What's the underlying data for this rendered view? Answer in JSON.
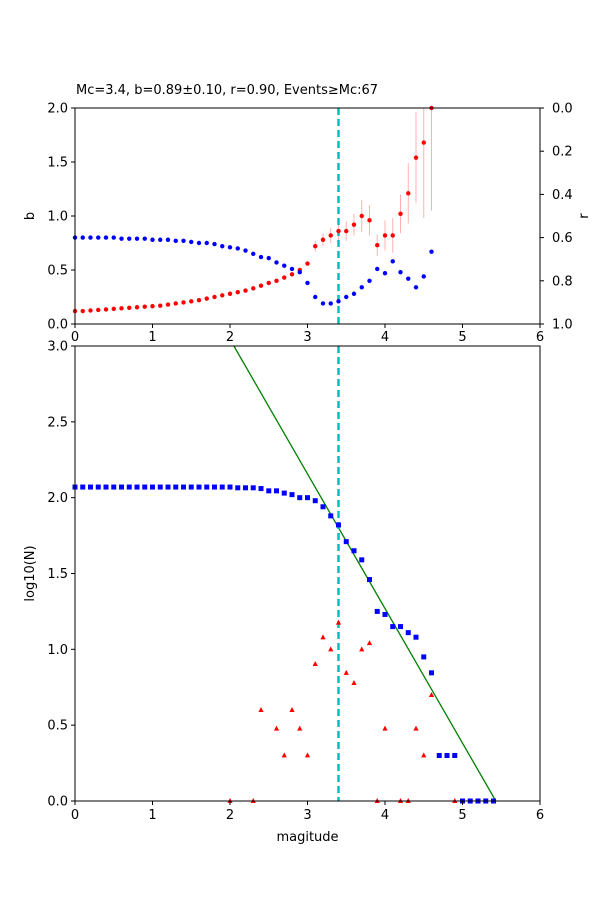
{
  "chart_data": [
    {
      "type": "scatter",
      "title": "Mc=3.4, b=0.89±0.10, r=0.90, Events≥Mc:67",
      "xlabel": "",
      "ylabel": "b",
      "ylabel_right": "r",
      "xlim": [
        0,
        6
      ],
      "ylim": [
        0,
        2
      ],
      "ylim_right": [
        1,
        0
      ],
      "x_ticks": [
        "0",
        "1",
        "2",
        "3",
        "4",
        "5",
        "6"
      ],
      "y_ticks": [
        "0.0",
        "0.5",
        "1.0",
        "1.5",
        "2.0"
      ],
      "y_ticks_right": [
        "0.0",
        "0.2",
        "0.4",
        "0.6",
        "0.8",
        "1.0"
      ],
      "grid": false,
      "mc_line": 3.4,
      "mc_line_color": "#00bfbf",
      "series": [
        {
          "color": "#ff0000",
          "axis": "left",
          "x": [
            0.0,
            0.1,
            0.2,
            0.3,
            0.4,
            0.5,
            0.6,
            0.7,
            0.8,
            0.9,
            1.0,
            1.1,
            1.2,
            1.3,
            1.4,
            1.5,
            1.6,
            1.7,
            1.8,
            1.9,
            2.0,
            2.1,
            2.2,
            2.3,
            2.4,
            2.5,
            2.6,
            2.7,
            2.8,
            2.9,
            3.0,
            3.1,
            3.2,
            3.3,
            3.4,
            3.5,
            3.6,
            3.7,
            3.8,
            3.9,
            4.0,
            4.1,
            4.2,
            4.3,
            4.4,
            4.5,
            4.6
          ],
          "values": [
            0.12,
            0.12,
            0.125,
            0.13,
            0.135,
            0.14,
            0.145,
            0.15,
            0.155,
            0.16,
            0.165,
            0.17,
            0.18,
            0.19,
            0.2,
            0.21,
            0.22,
            0.235,
            0.25,
            0.265,
            0.28,
            0.295,
            0.31,
            0.33,
            0.355,
            0.38,
            0.4,
            0.43,
            0.46,
            0.5,
            0.56,
            0.72,
            0.78,
            0.82,
            0.86,
            0.86,
            0.92,
            1.0,
            0.96,
            0.73,
            0.82,
            0.82,
            1.02,
            1.21,
            1.54,
            1.68,
            2.0
          ],
          "errors": [
            0,
            0,
            0,
            0,
            0,
            0,
            0,
            0,
            0,
            0,
            0,
            0,
            0,
            0,
            0,
            0,
            0,
            0,
            0,
            0,
            0,
            0,
            0,
            0,
            0,
            0,
            0,
            0,
            0,
            0,
            0.02,
            0.05,
            0.06,
            0.07,
            0.08,
            0.09,
            0.1,
            0.15,
            0.14,
            0.1,
            0.14,
            0.16,
            0.18,
            0.28,
            0.42,
            0.7,
            0.95
          ]
        },
        {
          "color": "#0000ff",
          "axis": "right",
          "x": [
            0.0,
            0.1,
            0.2,
            0.3,
            0.4,
            0.5,
            0.6,
            0.7,
            0.8,
            0.9,
            1.0,
            1.1,
            1.2,
            1.3,
            1.4,
            1.5,
            1.6,
            1.7,
            1.8,
            1.9,
            2.0,
            2.1,
            2.2,
            2.3,
            2.4,
            2.5,
            2.6,
            2.7,
            2.8,
            2.9,
            3.0,
            3.1,
            3.2,
            3.3,
            3.4,
            3.5,
            3.6,
            3.7,
            3.8,
            3.9,
            4.0,
            4.1,
            4.2,
            4.3,
            4.4,
            4.5,
            4.6
          ],
          "values": [
            0.6,
            0.6,
            0.6,
            0.6,
            0.6,
            0.6,
            0.605,
            0.605,
            0.605,
            0.605,
            0.61,
            0.61,
            0.61,
            0.615,
            0.615,
            0.62,
            0.625,
            0.625,
            0.63,
            0.64,
            0.645,
            0.65,
            0.66,
            0.675,
            0.69,
            0.695,
            0.715,
            0.73,
            0.745,
            0.76,
            0.81,
            0.875,
            0.905,
            0.905,
            0.895,
            0.875,
            0.86,
            0.83,
            0.8,
            0.745,
            0.765,
            0.71,
            0.76,
            0.79,
            0.83,
            0.78,
            0.665
          ]
        }
      ]
    },
    {
      "type": "scatter",
      "title": "",
      "xlabel": "magitude",
      "ylabel": "log10(N)",
      "xlim": [
        0,
        6
      ],
      "ylim": [
        0,
        3
      ],
      "x_ticks": [
        "0",
        "1",
        "2",
        "3",
        "4",
        "5",
        "6"
      ],
      "y_ticks": [
        "0.0",
        "0.5",
        "1.0",
        "1.5",
        "2.0",
        "2.5",
        "3.0"
      ],
      "grid": false,
      "mc_line": 3.4,
      "mc_line_color": "#00bfbf",
      "fit_line": {
        "color": "#008000",
        "x": [
          2.05,
          5.43
        ],
        "values": [
          3.0,
          0.0
        ]
      },
      "series": [
        {
          "color": "#0000ff",
          "marker": "square",
          "x": [
            0.0,
            0.1,
            0.2,
            0.3,
            0.4,
            0.5,
            0.6,
            0.7,
            0.8,
            0.9,
            1.0,
            1.1,
            1.2,
            1.3,
            1.4,
            1.5,
            1.6,
            1.7,
            1.8,
            1.9,
            2.0,
            2.1,
            2.2,
            2.3,
            2.4,
            2.5,
            2.6,
            2.7,
            2.8,
            2.9,
            3.0,
            3.1,
            3.2,
            3.3,
            3.4,
            3.5,
            3.6,
            3.7,
            3.8,
            3.9,
            4.0,
            4.1,
            4.2,
            4.3,
            4.4,
            4.5,
            4.6,
            4.7,
            4.8,
            4.9,
            5.0,
            5.1,
            5.2,
            5.3,
            5.4
          ],
          "values": [
            2.07,
            2.07,
            2.07,
            2.07,
            2.07,
            2.07,
            2.07,
            2.07,
            2.07,
            2.07,
            2.07,
            2.07,
            2.07,
            2.07,
            2.07,
            2.07,
            2.07,
            2.07,
            2.07,
            2.07,
            2.07,
            2.065,
            2.065,
            2.065,
            2.06,
            2.045,
            2.045,
            2.03,
            2.02,
            2.0,
            2.0,
            1.98,
            1.94,
            1.88,
            1.82,
            1.71,
            1.65,
            1.59,
            1.46,
            1.25,
            1.23,
            1.15,
            1.15,
            1.11,
            1.08,
            0.95,
            0.845,
            0.3,
            0.3,
            0.3,
            0.0,
            0.0,
            0.0,
            0.0,
            0.0
          ]
        },
        {
          "color": "#ff0000",
          "marker": "triangle",
          "x": [
            2.0,
            2.3,
            2.4,
            2.6,
            2.7,
            2.8,
            2.9,
            3.0,
            3.1,
            3.2,
            3.3,
            3.4,
            3.5,
            3.6,
            3.7,
            3.8,
            3.9,
            4.0,
            4.2,
            4.3,
            4.4,
            4.5,
            4.6,
            4.9
          ],
          "values": [
            0.0,
            0.0,
            0.6,
            0.477,
            0.301,
            0.6,
            0.477,
            0.301,
            0.903,
            1.079,
            1.0,
            1.176,
            0.845,
            0.778,
            1.0,
            1.041,
            0.0,
            0.477,
            0.0,
            0.0,
            0.477,
            0.301,
            0.699,
            0.0
          ]
        }
      ]
    }
  ]
}
